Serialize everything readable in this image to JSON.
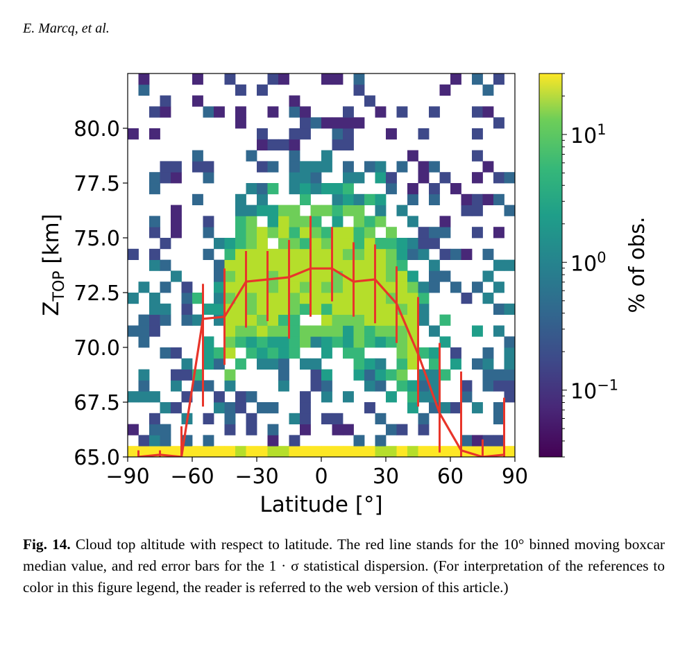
{
  "header": {
    "authors": "E. Marcq, et al."
  },
  "colorbar": {
    "label": "% of obs.",
    "ticks": [
      {
        "base": "10",
        "exp": "1",
        "value": 10
      },
      {
        "base": "10",
        "exp": "0",
        "value": 1
      },
      {
        "base": "10",
        "exp": "−1",
        "value": 0.1
      }
    ],
    "range": [
      0.03,
      30
    ],
    "scale": "log",
    "colormap": "viridis"
  },
  "chart_data": {
    "type": "heatmap",
    "xlabel": "Latitude [°]",
    "ylabel_main": "Z",
    "ylabel_sub": "TOP",
    "ylabel_unit": " [km]",
    "xlim": [
      -90,
      90
    ],
    "ylim": [
      65,
      82.5
    ],
    "xticks": [
      "−90",
      "−60",
      "−30",
      "0",
      "30",
      "60",
      "90"
    ],
    "yticks": [
      "65.0",
      "67.5",
      "70.0",
      "72.5",
      "75.0",
      "77.5",
      "80.0"
    ],
    "colorbar_scale": "log",
    "median_line": {
      "color": "#e8352a",
      "latitude": [
        -85,
        -75,
        -65,
        -55,
        -45,
        -35,
        -25,
        -15,
        -5,
        5,
        15,
        25,
        35,
        45,
        55,
        65,
        75,
        85
      ],
      "median_km": [
        65.0,
        65.1,
        65.0,
        71.3,
        71.4,
        73.0,
        73.1,
        73.2,
        73.6,
        73.6,
        73.0,
        73.1,
        72.0,
        69.7,
        67.0,
        65.3,
        65.0,
        65.1
      ],
      "sigma_low_km": [
        65.0,
        65.0,
        65.0,
        67.3,
        69.2,
        70.9,
        71.2,
        70.4,
        71.4,
        72.1,
        71.4,
        71.1,
        70.2,
        67.3,
        65.2,
        65.0,
        65.0,
        65.0
      ],
      "sigma_high_km": [
        65.3,
        65.3,
        66.4,
        72.9,
        73.6,
        74.4,
        74.4,
        74.9,
        76.0,
        75.5,
        74.8,
        74.7,
        73.7,
        72.3,
        70.2,
        68.9,
        65.8,
        67.7
      ]
    }
  },
  "caption": {
    "label": "Fig. 14.",
    "text": " Cloud top altitude with respect to latitude. The red line stands for the 10° binned moving boxcar median value, and red error bars for the 1 · σ statistical dispersion. (For interpretation of the references to color in this figure legend, the reader is referred to the web version of this article.)"
  }
}
